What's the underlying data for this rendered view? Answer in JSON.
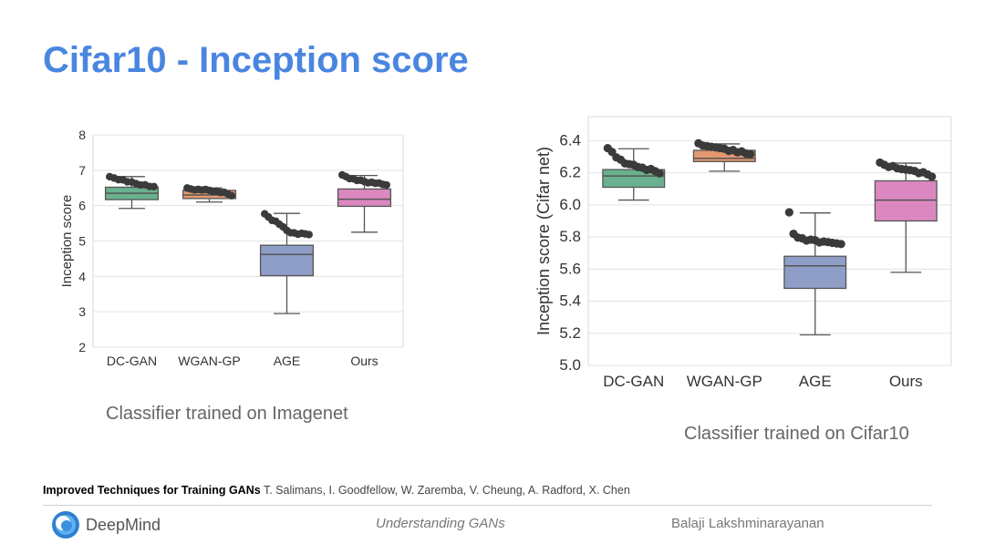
{
  "slide": {
    "title": "Cifar10 - Inception score"
  },
  "chart_data": [
    {
      "type": "boxplot",
      "title": "",
      "caption": "Classifier trained on Imagenet",
      "xlabel": "",
      "ylabel": "Inception score",
      "categories": [
        "DC-GAN",
        "WGAN-GP",
        "AGE",
        "Ours"
      ],
      "ylim": [
        2,
        8
      ],
      "yticks": [
        2,
        3,
        4,
        5,
        6,
        7,
        8
      ],
      "ytick_labels": [
        "2",
        "3",
        "4",
        "5",
        "6",
        "7",
        "8"
      ],
      "grid": true,
      "boxes": [
        {
          "name": "DC-GAN",
          "color": "#6ab18f",
          "whisker_low": 5.92,
          "q1": 6.17,
          "median": 6.35,
          "q3": 6.52,
          "whisker_high": 6.82,
          "points": [
            6.8,
            6.78,
            6.75,
            6.72,
            6.68,
            6.65,
            6.62,
            6.6,
            6.58,
            6.55,
            6.52
          ]
        },
        {
          "name": "WGAN-GP",
          "color": "#e39870",
          "whisker_low": 6.1,
          "q1": 6.2,
          "median": 6.3,
          "q3": 6.43,
          "whisker_high": 6.5,
          "points": [
            6.48,
            6.47,
            6.46,
            6.45,
            6.45,
            6.44,
            6.43,
            6.42,
            6.4,
            6.38,
            6.36,
            6.33,
            6.3
          ]
        },
        {
          "name": "AGE",
          "color": "#8e9ec7",
          "whisker_low": 2.95,
          "q1": 4.02,
          "median": 4.62,
          "q3": 4.88,
          "whisker_high": 5.78,
          "points": [
            5.75,
            5.68,
            5.6,
            5.55,
            5.48,
            5.38,
            5.3,
            5.25,
            5.22,
            5.2,
            5.2,
            5.2,
            5.2
          ]
        },
        {
          "name": "Ours",
          "color": "#dc88c0",
          "whisker_low": 5.25,
          "q1": 5.98,
          "median": 6.18,
          "q3": 6.47,
          "whisker_high": 6.85,
          "points": [
            6.85,
            6.82,
            6.78,
            6.75,
            6.72,
            6.7,
            6.68,
            6.66,
            6.65,
            6.64,
            6.62,
            6.6,
            6.6
          ]
        }
      ]
    },
    {
      "type": "boxplot",
      "title": "",
      "caption": "Classifier trained on Cifar10",
      "xlabel": "",
      "ylabel": "Inception score (Cifar net)",
      "categories": [
        "DC-GAN",
        "WGAN-GP",
        "AGE",
        "Ours"
      ],
      "ylim": [
        5.0,
        6.55
      ],
      "yticks": [
        5.0,
        5.2,
        5.4,
        5.6,
        5.8,
        6.0,
        6.2,
        6.4
      ],
      "ytick_labels": [
        "5.0",
        "5.2",
        "5.4",
        "5.6",
        "5.8",
        "6.0",
        "6.2",
        "6.4"
      ],
      "grid": true,
      "boxes": [
        {
          "name": "DC-GAN",
          "color": "#6ab18f",
          "whisker_low": 6.03,
          "q1": 6.11,
          "median": 6.18,
          "q3": 6.22,
          "whisker_high": 6.35,
          "points": [
            6.35,
            6.33,
            6.3,
            6.28,
            6.26,
            6.25,
            6.25,
            6.24,
            6.23,
            6.22,
            6.22,
            6.21,
            6.2
          ]
        },
        {
          "name": "WGAN-GP",
          "color": "#e39870",
          "whisker_low": 6.21,
          "q1": 6.27,
          "median": 6.29,
          "q3": 6.34,
          "whisker_high": 6.38,
          "points": [
            6.38,
            6.37,
            6.37,
            6.36,
            6.36,
            6.35,
            6.35,
            6.34,
            6.34,
            6.33,
            6.33,
            6.32,
            6.32
          ]
        },
        {
          "name": "AGE",
          "color": "#8e9ec7",
          "whisker_low": 5.19,
          "q1": 5.48,
          "median": 5.62,
          "q3": 5.68,
          "whisker_high": 5.95,
          "points": [
            5.95,
            5.82,
            5.8,
            5.79,
            5.78,
            5.78,
            5.78,
            5.77,
            5.77,
            5.77,
            5.76,
            5.76,
            5.76
          ]
        },
        {
          "name": "Ours",
          "color": "#dc88c0",
          "whisker_low": 5.58,
          "q1": 5.9,
          "median": 6.03,
          "q3": 6.15,
          "whisker_high": 6.26,
          "points": [
            6.26,
            6.25,
            6.24,
            6.24,
            6.23,
            6.22,
            6.22,
            6.22,
            6.21,
            6.2,
            6.2,
            6.19,
            6.18
          ]
        }
      ]
    }
  ],
  "reference": {
    "title": "Improved Techniques for Training GANs",
    "authors": "T. Salimans, I. Goodfellow, W. Zaremba, V. Cheung, A. Radford, X. Chen"
  },
  "footer": {
    "logo_text": "DeepMind",
    "center": "Understanding GANs",
    "right": "Balaji Lakshminarayanan"
  }
}
